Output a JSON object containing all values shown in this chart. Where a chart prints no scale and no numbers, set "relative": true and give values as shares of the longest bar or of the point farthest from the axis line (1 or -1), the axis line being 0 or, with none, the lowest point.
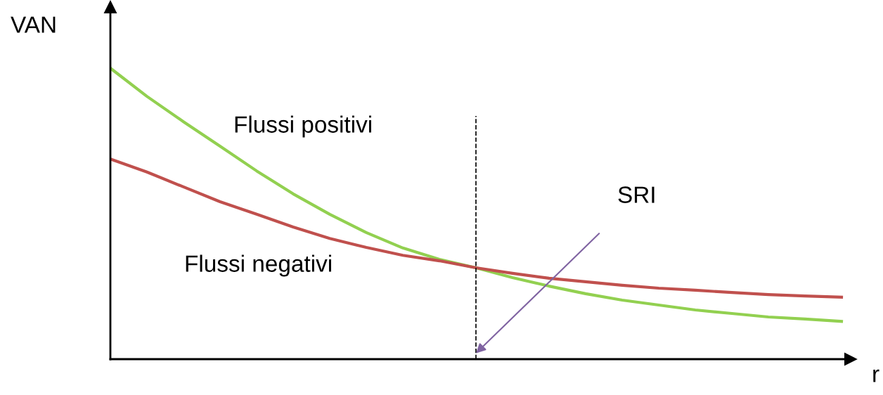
{
  "chart_data": {
    "type": "line",
    "relative": true,
    "xlabel": "r",
    "ylabel": "VAN",
    "marker": "none",
    "line_style": "solid",
    "categories": [
      null,
      null,
      null,
      null,
      null,
      null,
      null,
      null,
      null,
      null,
      null,
      null,
      null,
      null,
      null,
      null,
      null,
      null,
      null,
      null,
      null
    ],
    "series": [
      {
        "color": "#92d050",
        "values": [
          1.0,
          0.903,
          0.816,
          0.732,
          0.647,
          0.568,
          0.498,
          0.435,
          0.382,
          0.343,
          0.314,
          0.28,
          0.251,
          0.225,
          0.203,
          0.186,
          0.169,
          0.157,
          0.145,
          0.138,
          0.13
        ]
      },
      {
        "color": "#c0504d",
        "values": [
          0.688,
          0.643,
          0.592,
          0.541,
          0.498,
          0.454,
          0.415,
          0.384,
          0.357,
          0.338,
          0.314,
          0.295,
          0.278,
          0.266,
          0.254,
          0.244,
          0.237,
          0.229,
          0.222,
          0.217,
          0.213
        ]
      }
    ],
    "annotations": [
      "Flussi positivi",
      "Flussi negativi",
      "SRI"
    ]
  }
}
